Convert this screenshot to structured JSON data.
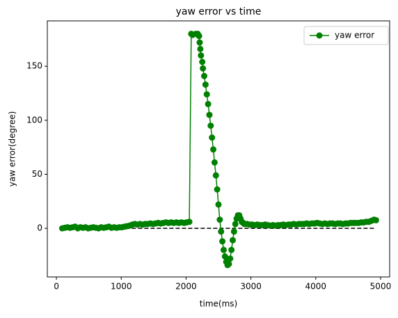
{
  "chart_data": {
    "type": "line",
    "title": "yaw error vs time",
    "x_label": "time(ms)",
    "y_label": "yaw error(degree)",
    "xlim": [
      -140,
      5140
    ],
    "ylim": [
      -45,
      192
    ],
    "xticks": [
      0,
      1000,
      2000,
      3000,
      4000,
      5000
    ],
    "yticks": [
      0,
      50,
      100,
      150
    ],
    "legend": "upper right",
    "grid": false,
    "series": [
      {
        "name": "yaw error",
        "color": "#008000",
        "x": [
          90,
          130,
          170,
          210,
          250,
          290,
          330,
          370,
          410,
          450,
          490,
          530,
          570,
          610,
          650,
          690,
          730,
          770,
          810,
          850,
          890,
          930,
          970,
          1010,
          1050,
          1090,
          1130,
          1170,
          1210,
          1250,
          1290,
          1330,
          1370,
          1410,
          1450,
          1490,
          1530,
          1570,
          1610,
          1650,
          1690,
          1730,
          1770,
          1810,
          1850,
          1890,
          1930,
          1970,
          2010,
          2050,
          2080,
          2100,
          2150,
          2180,
          2200,
          2210,
          2220,
          2230,
          2250,
          2260,
          2280,
          2300,
          2320,
          2340,
          2360,
          2380,
          2400,
          2420,
          2440,
          2460,
          2480,
          2500,
          2520,
          2540,
          2560,
          2580,
          2600,
          2620,
          2640,
          2660,
          2680,
          2700,
          2720,
          2740,
          2760,
          2780,
          2800,
          2820,
          2840,
          2860,
          2880,
          2900,
          2940,
          2980,
          3020,
          3060,
          3100,
          3140,
          3180,
          3220,
          3260,
          3300,
          3340,
          3380,
          3420,
          3460,
          3500,
          3540,
          3580,
          3620,
          3660,
          3700,
          3740,
          3780,
          3820,
          3860,
          3900,
          3940,
          3980,
          4020,
          4060,
          4100,
          4140,
          4180,
          4220,
          4260,
          4300,
          4340,
          4380,
          4420,
          4460,
          4500,
          4540,
          4580,
          4620,
          4660,
          4700,
          4740,
          4780,
          4820,
          4860,
          4900,
          4930
        ],
        "values": [
          0,
          0.5,
          1,
          0.5,
          1,
          1.5,
          0,
          1,
          0.5,
          1,
          0,
          0.5,
          1,
          0.5,
          0,
          1,
          0.5,
          1,
          1.5,
          0.5,
          1,
          0.5,
          1,
          1,
          1.5,
          2,
          2.5,
          3.5,
          4,
          3.5,
          4,
          3.5,
          4,
          4,
          4.5,
          4,
          4.5,
          5,
          4.5,
          5,
          5.5,
          5,
          5.5,
          5,
          5.5,
          5,
          5.5,
          5,
          5.5,
          6,
          180,
          179,
          180,
          180,
          178,
          172,
          166,
          160,
          154,
          148,
          141,
          133,
          124,
          115,
          105,
          95,
          84,
          73,
          61,
          49,
          36,
          22,
          8,
          -3,
          -12,
          -20,
          -26,
          -31,
          -34,
          -33,
          -28,
          -20,
          -11,
          -3,
          4,
          9,
          12,
          12,
          9,
          6,
          5,
          4,
          4,
          3.5,
          3.5,
          3,
          3.5,
          3,
          3,
          3.5,
          3,
          2.5,
          3,
          2.5,
          3,
          3,
          3.5,
          3,
          3.5,
          3.5,
          4,
          3.5,
          4,
          4,
          4,
          4.5,
          4,
          4.5,
          4.5,
          5,
          4.5,
          4,
          4.5,
          4,
          4.5,
          4.5,
          4,
          4.5,
          4.5,
          4,
          4.5,
          4.5,
          5,
          5,
          5,
          5,
          5.5,
          5.5,
          6,
          6,
          7,
          8,
          7.5
        ]
      }
    ],
    "reference": {
      "x": [
        100,
        4930
      ],
      "values": [
        0,
        0
      ],
      "color": "#000000",
      "style": "dashed"
    }
  }
}
